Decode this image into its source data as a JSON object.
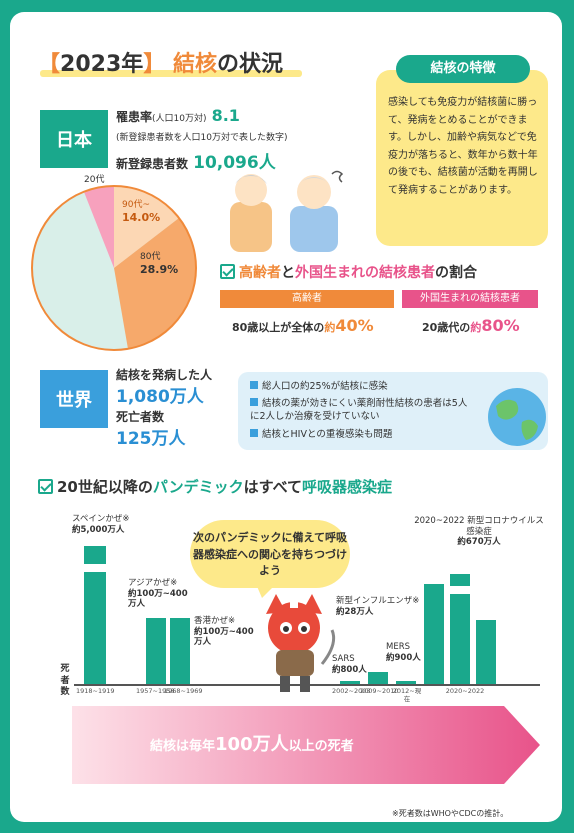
{
  "title": {
    "open": "【",
    "year": "2023年",
    "close": "】",
    "main": "結核",
    "no": "の",
    "rest": "状況"
  },
  "japan": {
    "label": "日本",
    "rate_label": "罹患率",
    "rate_unit": "(人口10万対)",
    "rate_value": "8.1",
    "rate_note": "(新登録患者数を人口10万対で表した数字)",
    "new_label": "新登録患者数",
    "new_value": "10,096人"
  },
  "pie": {
    "label_20": "20代",
    "label_90": "90代~",
    "value_90": "14.0%",
    "label_80": "80代",
    "value_80": "28.9%"
  },
  "feature": {
    "tag": "結核の特徴",
    "body": "感染しても免疫力が結核菌に勝って、発病をとめることができます。しかし、加齢や病気などで免疫力が落ちると、数年から数十年の後でも、結核菌が活動を再開して発病することがあります。"
  },
  "ratio": {
    "h_a": "高齢者",
    "h_b": "と",
    "h_c": "外国生まれの結核患者",
    "h_d": "の割合",
    "elder_tag": "高齢者",
    "foreign_tag": "外国生まれの結核患者",
    "elder_text": "80歳以上が全体の",
    "elder_yaku": "約",
    "elder_val": "40%",
    "foreign_text": "20歳代の",
    "foreign_yaku": "約",
    "foreign_val": "80%"
  },
  "world": {
    "label": "世界",
    "onset_label": "結核を発病した人",
    "onset_value": "1,080万人",
    "death_label": "死亡者数",
    "death_value": "125万人",
    "items": [
      "総人口の約25%が結核に感染",
      "結核の薬が効きにくい薬剤耐性結核の患者は5人に2人しか治療を受けていない",
      "結核とHIVとの重複感染も問題"
    ]
  },
  "pandemic": {
    "h_a": "20世紀以降の",
    "h_b": "パンデミック",
    "h_c": "はすべて",
    "h_d": "呼吸器感染症",
    "bubble": "次のパンデミックに備えて呼吸器感染症への関心を持ちつづけよう",
    "y_axis": "死者数",
    "bars": [
      {
        "name": "スペインかぜ※",
        "deaths": "約5,000万人",
        "years": "1918~1919",
        "value": 5000
      },
      {
        "name": "アジアかぜ※",
        "deaths": "約100万~400万人",
        "years": "1957~1958",
        "value": 400
      },
      {
        "name": "香港かぜ※",
        "deaths": "約100万~400万人",
        "years": "1968~1969",
        "value": 400
      },
      {
        "name": "SARS",
        "deaths": "約800人",
        "years": "2002~2003",
        "value": 0.08
      },
      {
        "name": "新型インフルエンザ※",
        "deaths": "約28万人",
        "years": "2009~2010",
        "value": 28
      },
      {
        "name": "MERS",
        "deaths": "約900人",
        "years": "2012~現在",
        "value": 0.09
      },
      {
        "name": "2020~2022 新型コロナウイルス感染症",
        "deaths": "約670万人",
        "years": "2020~2022",
        "value": 670
      }
    ],
    "arrow_a": "結核は毎年",
    "arrow_b": "100万人",
    "arrow_c": "以上の死者",
    "footnote": "※死者数はWHOやCDCの推計。"
  }
}
